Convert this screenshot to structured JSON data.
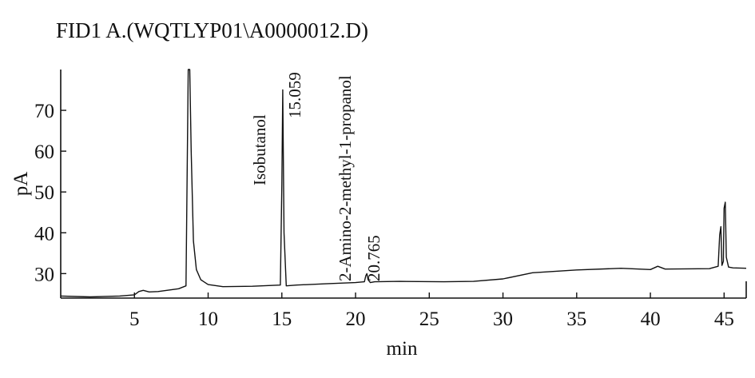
{
  "chart_data": {
    "type": "line",
    "title": "FID1 A.(WQTLYP01\\A0000012.D)",
    "xlabel": "min",
    "ylabel": "pA",
    "xlim": [
      0,
      46.5
    ],
    "ylim": [
      24,
      80
    ],
    "xticks": [
      5,
      10,
      15,
      20,
      25,
      30,
      35,
      40,
      45
    ],
    "yticks": [
      30,
      40,
      50,
      60,
      70
    ],
    "grid": false,
    "series": [
      {
        "x": [
          0.0,
          2.0,
          4.0,
          5.0,
          5.3,
          5.6,
          6.0,
          6.6,
          7.2,
          8.0,
          8.5,
          8.65,
          8.75,
          8.85,
          9.0,
          9.2,
          9.5,
          10.0,
          11.0,
          13.0,
          14.9,
          15.0,
          15.06,
          15.15,
          15.3,
          16.0,
          18.0,
          20.0,
          20.6,
          20.7,
          20.77,
          20.85,
          21.0,
          21.3,
          23.0,
          26.0,
          28.0,
          30.0,
          32.0,
          35.0,
          38.0,
          40.0,
          40.5,
          41.0,
          44.0,
          44.6,
          44.7,
          44.78,
          44.85,
          44.95,
          45.0,
          45.08,
          45.15,
          45.3,
          45.6,
          46.5
        ],
        "y": [
          24.5,
          24.3,
          24.5,
          24.8,
          25.6,
          25.9,
          25.5,
          25.6,
          25.9,
          26.3,
          27.0,
          80.0,
          80.0,
          60.0,
          38.0,
          31.0,
          28.5,
          27.3,
          26.8,
          26.9,
          27.2,
          52.0,
          75.0,
          40.0,
          27.0,
          27.2,
          27.5,
          27.8,
          28.0,
          29.5,
          30.0,
          28.5,
          27.8,
          28.0,
          28.1,
          28.0,
          28.1,
          28.7,
          30.2,
          30.9,
          31.3,
          31.0,
          31.8,
          31.1,
          31.2,
          31.8,
          39.5,
          41.5,
          32.0,
          33.0,
          46.0,
          47.5,
          34.0,
          31.6,
          31.4,
          31.3
        ]
      }
    ],
    "annotations": [
      {
        "text": "Isobutanol",
        "x": 15.06
      },
      {
        "text": "15.059",
        "x": 15.06
      },
      {
        "text": "2-Amino-2-methyl-1-propanol",
        "x": 20.77
      },
      {
        "text": "20.765",
        "x": 20.77
      }
    ]
  }
}
